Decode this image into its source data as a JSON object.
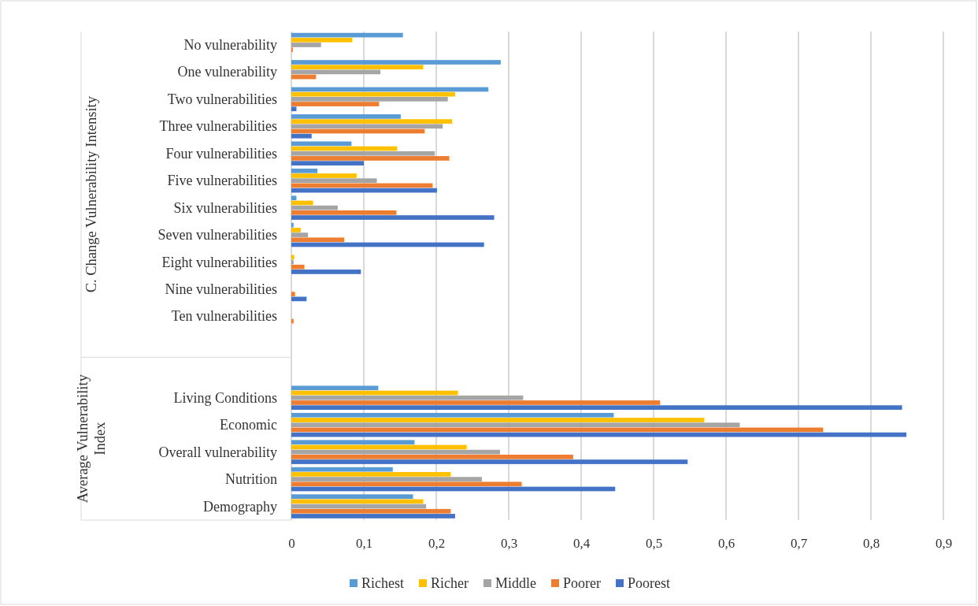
{
  "chart_data": {
    "type": "bar",
    "orientation": "horizontal",
    "categories": [
      "No vulnerability",
      "One vulnerability",
      "Two vulnerabilities",
      "Three vulnerabilities",
      "Four vulnerabilities",
      "Five vulnerabilities",
      "Six vulnerabilities",
      "Seven vulnerabilities",
      "Eight vulnerabilities",
      "Nine vulnerabilities",
      "Ten vulnerabilities",
      null,
      null,
      "Living Conditions",
      "Economic",
      "Overall vulnerability",
      "Nutrition",
      "Demography"
    ],
    "series": [
      {
        "name": "Richest",
        "color": "#5b9bd5",
        "values": [
          0.154,
          0.289,
          0.272,
          0.151,
          0.083,
          0.036,
          0.007,
          0.003,
          0,
          0,
          0,
          null,
          null,
          0.12,
          0.445,
          0.17,
          0.14,
          0.168
        ]
      },
      {
        "name": "Richer",
        "color": "#ffc000",
        "values": [
          0.084,
          0.182,
          0.226,
          0.222,
          0.146,
          0.09,
          0.03,
          0.013,
          0.004,
          0,
          0,
          null,
          null,
          0.23,
          0.57,
          0.242,
          0.22,
          0.182
        ]
      },
      {
        "name": "Middle",
        "color": "#a5a5a5",
        "values": [
          0.041,
          0.123,
          0.216,
          0.209,
          0.198,
          0.118,
          0.064,
          0.023,
          0.003,
          0,
          0,
          null,
          null,
          0.32,
          0.619,
          0.288,
          0.263,
          0.186
        ]
      },
      {
        "name": "Poorer",
        "color": "#ed7d31",
        "values": [
          0.002,
          0.034,
          0.121,
          0.184,
          0.218,
          0.195,
          0.145,
          0.073,
          0.018,
          0.005,
          0.003,
          null,
          null,
          0.509,
          0.734,
          0.389,
          0.318,
          0.22
        ]
      },
      {
        "name": "Poorest",
        "color": "#4472c4",
        "values": [
          0,
          0,
          0.007,
          0.028,
          0.1,
          0.201,
          0.28,
          0.266,
          0.096,
          0.021,
          0,
          null,
          null,
          0.843,
          0.849,
          0.547,
          0.447,
          0.226
        ]
      }
    ],
    "xlim": [
      0,
      0.9
    ],
    "xticks": [
      0,
      {
        "value": 0.1,
        "label": "0,1"
      },
      {
        "value": 0.2,
        "label": "0,2"
      },
      {
        "value": 0.3,
        "label": "0,3"
      },
      {
        "value": 0.4,
        "label": "0,4"
      },
      {
        "value": 0.5,
        "label": "0,5"
      },
      {
        "value": 0.6,
        "label": "0,6"
      },
      {
        "value": 0.7,
        "label": "0,7"
      },
      {
        "value": 0.8,
        "label": "0,8"
      },
      {
        "value": 0.9,
        "label": "0,9"
      }
    ],
    "grid": "x",
    "legend": "bottom",
    "annotations": [
      "C. Change Vulnerability Intensity",
      "Average Vulnerability Index"
    ]
  }
}
